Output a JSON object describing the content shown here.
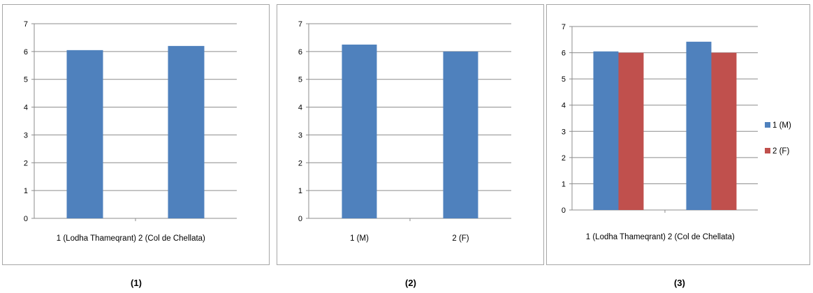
{
  "captions": [
    "(1)",
    "(2)",
    "(3)"
  ],
  "chart_data": [
    {
      "type": "bar",
      "categories": [
        "1 (Lodha Thameqrant)",
        "2 (Col de Chellata)"
      ],
      "series": [
        {
          "values": [
            6.05,
            6.2
          ]
        }
      ],
      "ylim": [
        0,
        7
      ],
      "yticks": [
        0,
        1,
        2,
        3,
        4,
        5,
        6,
        7
      ],
      "grid": true,
      "colors": [
        "#4f81bd"
      ],
      "legend": "none"
    },
    {
      "type": "bar",
      "categories": [
        "1 (M)",
        "2 (F)"
      ],
      "series": [
        {
          "values": [
            6.25,
            6.0
          ]
        }
      ],
      "ylim": [
        0,
        7
      ],
      "yticks": [
        0,
        1,
        2,
        3,
        4,
        5,
        6,
        7
      ],
      "grid": true,
      "colors": [
        "#4f81bd"
      ],
      "legend": "none"
    },
    {
      "type": "bar",
      "categories": [
        "1 (Lodha Thameqrant)",
        "2 (Col de Chellata)"
      ],
      "series": [
        {
          "name": "1 (M)",
          "values": [
            6.05,
            6.42
          ]
        },
        {
          "name": "2 (F)",
          "values": [
            6.0,
            6.0
          ]
        }
      ],
      "ylim": [
        0,
        7
      ],
      "yticks": [
        0,
        1,
        2,
        3,
        4,
        5,
        6,
        7
      ],
      "grid": true,
      "colors": [
        "#4f81bd",
        "#c0504d"
      ],
      "legend": "right"
    }
  ]
}
